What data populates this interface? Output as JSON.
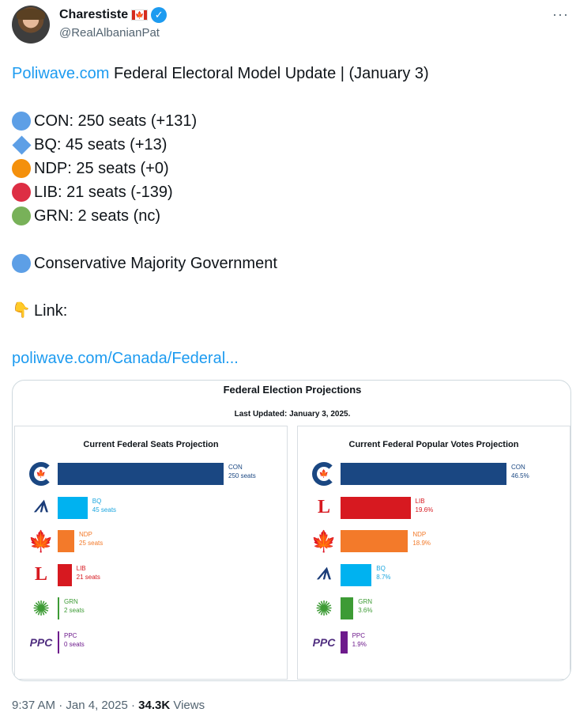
{
  "author": {
    "display_name": "Charestiste",
    "handle": "@RealAlbanianPat",
    "more_label": "···"
  },
  "tweet": {
    "headline_link": "Poliwave.com",
    "headline_rest": " Federal Electoral Model Update | (January 3)",
    "results": [
      {
        "text": "CON: 250 seats (+131)",
        "color": "#5d9fe6",
        "shape": "circle"
      },
      {
        "text": "BQ: 45 seats (+13)",
        "color": "#5d9fe6",
        "shape": "diamond"
      },
      {
        "text": "NDP: 25 seats (+0)",
        "color": "#f4900c",
        "shape": "circle"
      },
      {
        "text": "LIB: 21 seats (-139)",
        "color": "#dd2e44",
        "shape": "circle"
      },
      {
        "text": "GRN: 2 seats (nc)",
        "color": "#78b159",
        "shape": "circle"
      }
    ],
    "outcome": "Conservative Majority Government",
    "link_emoji": "👇",
    "link_label": "Link:",
    "url": "poliwave.com/Canada/Federal..."
  },
  "card": {
    "title": "Federal Election Projections",
    "subtitle": "Last Updated: January 3, 2025."
  },
  "chart_data": [
    {
      "type": "bar",
      "title": "Current Federal Seats Projection",
      "categories": [
        "CON",
        "BQ",
        "NDP",
        "LIB",
        "GRN",
        "PPC"
      ],
      "values": [
        250,
        45,
        25,
        21,
        2,
        0
      ],
      "value_labels": [
        "250 seats",
        "45 seats",
        "25 seats",
        "21 seats",
        "2 seats",
        "0 seats"
      ],
      "colors": [
        "#1a4782",
        "#00b2f0",
        "#f37a2a",
        "#d71920",
        "#3d9b35",
        "#6d1a8c"
      ],
      "label_colors": [
        "#1a4782",
        "#1ba6df",
        "#f37a2a",
        "#d71920",
        "#3d9b35",
        "#6d1a8c"
      ],
      "logos": [
        "con",
        "bq",
        "ndp",
        "lib",
        "grn",
        "ppc"
      ],
      "xlim": [
        0,
        250
      ]
    },
    {
      "type": "bar",
      "title": "Current Federal Popular Votes Projection",
      "categories": [
        "CON",
        "LIB",
        "NDP",
        "BQ",
        "GRN",
        "PPC"
      ],
      "values": [
        46.5,
        19.6,
        18.9,
        8.7,
        3.6,
        1.9
      ],
      "value_labels": [
        "46.5%",
        "19.6%",
        "18.9%",
        "8.7%",
        "3.6%",
        "1.9%"
      ],
      "colors": [
        "#1a4782",
        "#d71920",
        "#f37a2a",
        "#00b2f0",
        "#3d9b35",
        "#6d1a8c"
      ],
      "label_colors": [
        "#1a4782",
        "#d71920",
        "#f37a2a",
        "#1ba6df",
        "#3d9b35",
        "#6d1a8c"
      ],
      "logos": [
        "con",
        "lib",
        "ndp",
        "bq",
        "grn",
        "ppc"
      ],
      "xlim": [
        0,
        46.5
      ]
    }
  ],
  "footer": {
    "time": "9:37 AM",
    "date": "Jan 4, 2025",
    "views_count": "34.3K",
    "views_label": "Views"
  }
}
